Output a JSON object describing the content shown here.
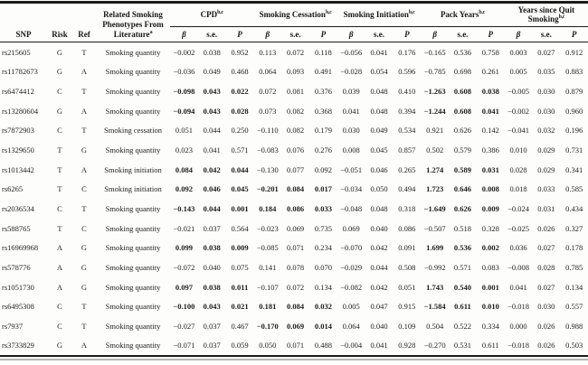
{
  "table": {
    "header": {
      "snp": "SNP",
      "risk": "Risk",
      "ref": "Ref",
      "phenotype_lines": [
        "Related Smoking",
        "Phenotypes From",
        "Literature"
      ],
      "phenotype_sup": "a",
      "groups": [
        {
          "label": "CPD",
          "sup": "b,c"
        },
        {
          "label": "Smoking Cessation",
          "sup": "b,c"
        },
        {
          "label": "Smoking Initiation",
          "sup": "b,c"
        },
        {
          "label": "Pack Years",
          "sup": "b,c"
        },
        {
          "label": "Years since Quit Smoking",
          "sup": "b,c"
        }
      ],
      "stat_headers": [
        {
          "text": "β",
          "italic": true
        },
        {
          "text": "s.e.",
          "italic": false
        },
        {
          "text": "P",
          "italic": true
        }
      ]
    },
    "rows": [
      {
        "snp": "rs215605",
        "risk": "G",
        "ref": "T",
        "phenotype": "Smoking quantity",
        "values": [
          "−0.002",
          "0.038",
          "0.952",
          "0.113",
          "0.072",
          "0.118",
          "−0.056",
          "0.041",
          "0.176",
          "−0.165",
          "0.536",
          "0.758",
          "0.003",
          "0.027",
          "0.912"
        ],
        "bold": []
      },
      {
        "snp": "rs11782673",
        "risk": "G",
        "ref": "A",
        "phenotype": "Smoking quantity",
        "values": [
          "−0.036",
          "0.049",
          "0.468",
          "0.064",
          "0.093",
          "0.491",
          "−0.028",
          "0.054",
          "0.596",
          "−0.785",
          "0.698",
          "0.261",
          "0.005",
          "0.035",
          "0.883"
        ],
        "bold": []
      },
      {
        "snp": "rs6474412",
        "risk": "C",
        "ref": "T",
        "phenotype": "Smoking quantity",
        "values": [
          "−0.098",
          "0.043",
          "0.022",
          "0.072",
          "0.081",
          "0.376",
          "0.039",
          "0.048",
          "0.410",
          "−1.263",
          "0.608",
          "0.038",
          "−0.005",
          "0.030",
          "0.879"
        ],
        "bold": [
          0,
          1,
          2,
          9,
          10,
          11
        ]
      },
      {
        "snp": "rs13280604",
        "risk": "G",
        "ref": "A",
        "phenotype": "Smoking quantity",
        "values": [
          "−0.094",
          "0.043",
          "0.028",
          "0.073",
          "0.082",
          "0.368",
          "0.041",
          "0.048",
          "0.394",
          "−1.244",
          "0.608",
          "0.041",
          "−0.002",
          "0.030",
          "0.960"
        ],
        "bold": [
          0,
          1,
          2,
          9,
          10,
          11
        ]
      },
      {
        "snp": "rs7872903",
        "risk": "C",
        "ref": "T",
        "phenotype": "Smoking cessation",
        "values": [
          "0.051",
          "0.044",
          "0.250",
          "−0.110",
          "0.082",
          "0.179",
          "0.030",
          "0.049",
          "0.534",
          "0.921",
          "0.626",
          "0.142",
          "−0.041",
          "0.032",
          "0.196"
        ],
        "bold": []
      },
      {
        "snp": "rs1329650",
        "risk": "T",
        "ref": "G",
        "phenotype": "Smoking quantity",
        "values": [
          "0.023",
          "0.041",
          "0.571",
          "−0.083",
          "0.076",
          "0.276",
          "0.008",
          "0.045",
          "0.857",
          "0.502",
          "0.579",
          "0.386",
          "0.010",
          "0.029",
          "0.731"
        ],
        "bold": []
      },
      {
        "snp": "rs1013442",
        "risk": "T",
        "ref": "A",
        "phenotype": "Smoking initiation",
        "values": [
          "0.084",
          "0.042",
          "0.044",
          "−0.130",
          "0.077",
          "0.092",
          "−0.051",
          "0.046",
          "0.265",
          "1.274",
          "0.589",
          "0.031",
          "0.028",
          "0.029",
          "0.341"
        ],
        "bold": [
          0,
          1,
          2,
          9,
          10,
          11
        ]
      },
      {
        "snp": "rs6265",
        "risk": "T",
        "ref": "C",
        "phenotype": "Smoking initiation",
        "values": [
          "0.092",
          "0.046",
          "0.045",
          "−0.201",
          "0.084",
          "0.017",
          "−0.034",
          "0.050",
          "0.494",
          "1.723",
          "0.646",
          "0.008",
          "0.018",
          "0.033",
          "0.585"
        ],
        "bold": [
          0,
          1,
          2,
          3,
          4,
          5,
          9,
          10,
          11
        ]
      },
      {
        "snp": "rs2036534",
        "risk": "C",
        "ref": "T",
        "phenotype": "Smoking quantity",
        "values": [
          "−0.143",
          "0.044",
          "0.001",
          "0.184",
          "0.086",
          "0.033",
          "−0.048",
          "0.048",
          "0.318",
          "−1.649",
          "0.626",
          "0.009",
          "−0.024",
          "0.031",
          "0.434"
        ],
        "bold": [
          0,
          1,
          2,
          3,
          4,
          5,
          9,
          10,
          11
        ]
      },
      {
        "snp": "rs588765",
        "risk": "T",
        "ref": "C",
        "phenotype": "Smoking quantity",
        "values": [
          "−0.021",
          "0.037",
          "0.564",
          "−0.023",
          "0.069",
          "0.735",
          "0.069",
          "0.040",
          "0.086",
          "−0.507",
          "0.518",
          "0.328",
          "−0.025",
          "0.026",
          "0.327"
        ],
        "bold": []
      },
      {
        "snp": "rs16969968",
        "risk": "A",
        "ref": "G",
        "phenotype": "Smoking quantity",
        "values": [
          "0.099",
          "0.038",
          "0.009",
          "−0.085",
          "0.071",
          "0.234",
          "−0.070",
          "0.042",
          "0.091",
          "1.699",
          "0.536",
          "0.002",
          "0.036",
          "0.027",
          "0.178"
        ],
        "bold": [
          0,
          1,
          2,
          9,
          10,
          11
        ]
      },
      {
        "snp": "rs578776",
        "risk": "A",
        "ref": "G",
        "phenotype": "Smoking quantity",
        "values": [
          "−0.072",
          "0.040",
          "0.075",
          "0.141",
          "0.078",
          "0.070",
          "−0.029",
          "0.044",
          "0.508",
          "−0.992",
          "0.571",
          "0.083",
          "−0.008",
          "0.028",
          "0.785"
        ],
        "bold": []
      },
      {
        "snp": "rs1051730",
        "risk": "A",
        "ref": "G",
        "phenotype": "Smoking quantity",
        "values": [
          "0.097",
          "0.038",
          "0.011",
          "−0.107",
          "0.072",
          "0.134",
          "−0.082",
          "0.042",
          "0.051",
          "1.743",
          "0.540",
          "0.001",
          "0.041",
          "0.027",
          "0.134"
        ],
        "bold": [
          0,
          1,
          2,
          9,
          10,
          11
        ]
      },
      {
        "snp": "rs6495308",
        "risk": "C",
        "ref": "T",
        "phenotype": "Smoking quantity",
        "values": [
          "−0.100",
          "0.043",
          "0.021",
          "0.181",
          "0.084",
          "0.032",
          "0.005",
          "0.047",
          "0.915",
          "−1.584",
          "0.611",
          "0.010",
          "−0.018",
          "0.030",
          "0.557"
        ],
        "bold": [
          0,
          1,
          2,
          3,
          4,
          5,
          9,
          10,
          11
        ]
      },
      {
        "snp": "rs7937",
        "risk": "C",
        "ref": "T",
        "phenotype": "Smoking quantity",
        "values": [
          "−0.027",
          "0.037",
          "0.467",
          "−0.170",
          "0.069",
          "0.014",
          "0.064",
          "0.040",
          "0.109",
          "0.504",
          "0.522",
          "0.334",
          "0.000",
          "0.026",
          "0.988"
        ],
        "bold": [
          3,
          4,
          5
        ]
      },
      {
        "snp": "rs3733829",
        "risk": "G",
        "ref": "A",
        "phenotype": "Smoking quantity",
        "values": [
          "−0.071",
          "0.037",
          "0.059",
          "0.050",
          "0.071",
          "0.488",
          "−0.004",
          "0.041",
          "0.928",
          "−0.270",
          "0.531",
          "0.611",
          "−0.018",
          "0.026",
          "0.503"
        ],
        "bold": []
      }
    ],
    "accent_color": "#1b1b1b"
  }
}
